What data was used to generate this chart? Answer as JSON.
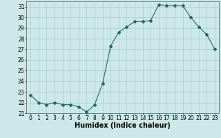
{
  "x": [
    0,
    1,
    2,
    3,
    4,
    5,
    6,
    7,
    8,
    9,
    10,
    11,
    12,
    13,
    14,
    15,
    16,
    17,
    18,
    19,
    20,
    21,
    22,
    23
  ],
  "y": [
    22.7,
    22.0,
    21.8,
    22.0,
    21.8,
    21.8,
    21.6,
    21.1,
    21.8,
    23.8,
    27.3,
    28.6,
    29.1,
    29.6,
    29.6,
    29.7,
    31.2,
    31.1,
    31.1,
    31.1,
    30.0,
    29.1,
    28.4,
    27.0
  ],
  "line_color": "#1a6b5a",
  "marker": "D",
  "marker_size": 2.0,
  "xlabel": "Humidex (Indice chaleur)",
  "xlim": [
    -0.5,
    23.5
  ],
  "ylim": [
    21.0,
    31.5
  ],
  "yticks": [
    21,
    22,
    23,
    24,
    25,
    26,
    27,
    28,
    29,
    30,
    31
  ],
  "xticks": [
    0,
    1,
    2,
    3,
    4,
    5,
    6,
    7,
    8,
    9,
    10,
    11,
    12,
    13,
    14,
    15,
    16,
    17,
    18,
    19,
    20,
    21,
    22,
    23
  ],
  "bg_color": "#cce8e8",
  "grid_color": "#aacccc",
  "tick_label_fontsize": 5.5,
  "xlabel_fontsize": 7.0
}
